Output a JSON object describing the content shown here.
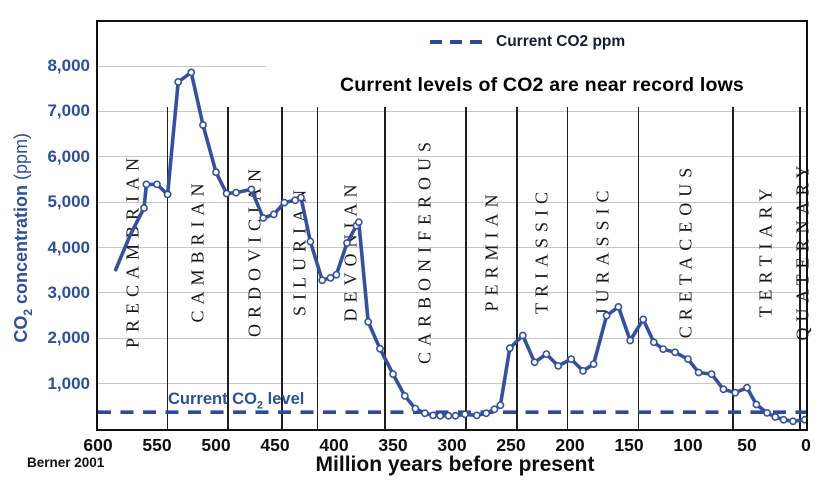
{
  "attribution": "Berner 2001",
  "legend": {
    "label": "Current CO2 ppm"
  },
  "colors": {
    "curve": "#35509c",
    "marker_fill": "#ffffff",
    "dashed_line": "#2e4a96",
    "axis_text_blue": "#2d4f9c",
    "grid": "#c6c6c6",
    "boundary": "#1f1f1f",
    "title_text": "#000000"
  },
  "chart_data": {
    "type": "line",
    "title": "Current levels of CO2 are near record lows",
    "xlabel": "Million years before present",
    "ylabel": "CO2 concentration (ppm)",
    "ylabel_parts": {
      "pre": "CO",
      "sub": "2",
      "post": " concentration",
      "unit": " (ppm)"
    },
    "xlim": [
      600,
      0
    ],
    "ylim": [
      0,
      8970
    ],
    "xticks": [
      600,
      550,
      500,
      450,
      400,
      350,
      300,
      250,
      200,
      150,
      100,
      50,
      0
    ],
    "yticks": [
      1000,
      2000,
      3000,
      4000,
      5000,
      6000,
      7000,
      8000
    ],
    "ytick_labels": [
      "1,000",
      "2,000",
      "3,000",
      "4,000",
      "5,000",
      "6,000",
      "7,000",
      "8,000"
    ],
    "grid": "horizontal",
    "legend_position": "top-center",
    "current_co2_line": {
      "ppm": 370,
      "legend_label": "Current CO2 ppm",
      "annotation_parts": {
        "pre": "Current CO",
        "sub": "2",
        "post": " level"
      }
    },
    "periods": [
      {
        "name": "PRECAMBRIAN",
        "from": 600,
        "to": 541
      },
      {
        "name": "CAMBRIAN",
        "from": 541,
        "to": 490
      },
      {
        "name": "ORDOVICIAN",
        "from": 490,
        "to": 444
      },
      {
        "name": "SILURIAN",
        "from": 444,
        "to": 414
      },
      {
        "name": "DEVONIAN",
        "from": 414,
        "to": 357
      },
      {
        "name": "CARBONIFEROUS",
        "from": 357,
        "to": 288
      },
      {
        "name": "PERMIAN",
        "from": 288,
        "to": 245
      },
      {
        "name": "TRIASSIC",
        "from": 245,
        "to": 202
      },
      {
        "name": "JURASSIC",
        "from": 202,
        "to": 142
      },
      {
        "name": "CRETACEOUS",
        "from": 142,
        "to": 62
      },
      {
        "name": "TERTIARY",
        "from": 62,
        "to": 5
      },
      {
        "name": "QUATERNARY",
        "from": 5,
        "to": 0
      }
    ],
    "series": [
      {
        "name": "CO2 concentration",
        "markers_start_index": 2,
        "points": [
          [
            585,
            3510
          ],
          [
            573,
            4260
          ],
          [
            561,
            4870
          ],
          [
            559,
            5390
          ],
          [
            550,
            5390
          ],
          [
            541,
            5170
          ],
          [
            532,
            7650
          ],
          [
            521,
            7860
          ],
          [
            511,
            6700
          ],
          [
            500,
            5660
          ],
          [
            491,
            5190
          ],
          [
            483,
            5210
          ],
          [
            470,
            5280
          ],
          [
            460,
            4650
          ],
          [
            451,
            4730
          ],
          [
            442,
            4990
          ],
          [
            433,
            5040
          ],
          [
            428,
            5100
          ],
          [
            420,
            4130
          ],
          [
            410,
            3280
          ],
          [
            403,
            3330
          ],
          [
            398,
            3400
          ],
          [
            389,
            4100
          ],
          [
            381,
            4480
          ],
          [
            379,
            4560
          ],
          [
            371,
            2360
          ],
          [
            361,
            1770
          ],
          [
            350,
            1210
          ],
          [
            340,
            730
          ],
          [
            331,
            450
          ],
          [
            323,
            345
          ],
          [
            316,
            300
          ],
          [
            310,
            290
          ],
          [
            303,
            290
          ],
          [
            297,
            290
          ],
          [
            289,
            325
          ],
          [
            279,
            300
          ],
          [
            271,
            345
          ],
          [
            264,
            435
          ],
          [
            259,
            525
          ],
          [
            251,
            1780
          ],
          [
            240,
            2060
          ],
          [
            230,
            1470
          ],
          [
            220,
            1650
          ],
          [
            210,
            1390
          ],
          [
            199,
            1540
          ],
          [
            189,
            1280
          ],
          [
            180,
            1430
          ],
          [
            169,
            2500
          ],
          [
            159,
            2690
          ],
          [
            149,
            1950
          ],
          [
            138,
            2415
          ],
          [
            129,
            1910
          ],
          [
            121,
            1760
          ],
          [
            111,
            1690
          ],
          [
            100,
            1540
          ],
          [
            91,
            1245
          ],
          [
            80,
            1210
          ],
          [
            70,
            875
          ],
          [
            60,
            800
          ],
          [
            50,
            910
          ],
          [
            42,
            540
          ],
          [
            33,
            355
          ],
          [
            26,
            265
          ],
          [
            19,
            205
          ],
          [
            11,
            170
          ],
          [
            1,
            205
          ]
        ]
      }
    ]
  }
}
